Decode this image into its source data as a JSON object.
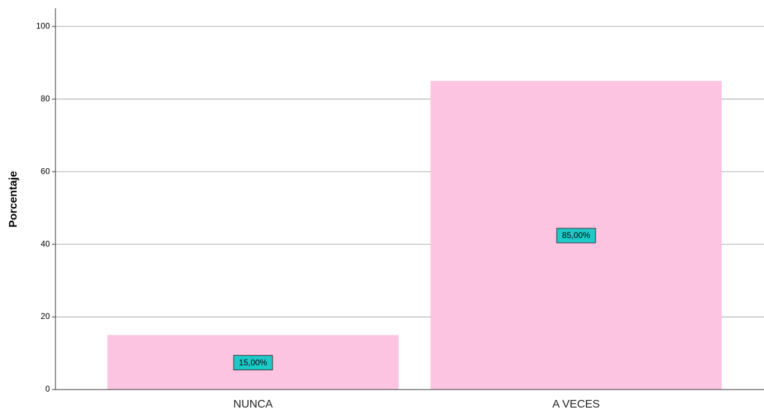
{
  "chart_data": {
    "type": "bar",
    "y_label": "Porcentaje",
    "categories": [
      "NUNCA",
      "A VECES"
    ],
    "values": [
      15,
      85
    ],
    "value_labels": [
      "15,00%",
      "85,00%"
    ],
    "color": "#fcc4e0",
    "label_box_color": "#1fc9c9",
    "ylim": [
      0,
      105
    ],
    "yticks": [
      0,
      20,
      40,
      60,
      80,
      100
    ],
    "grid": true
  }
}
